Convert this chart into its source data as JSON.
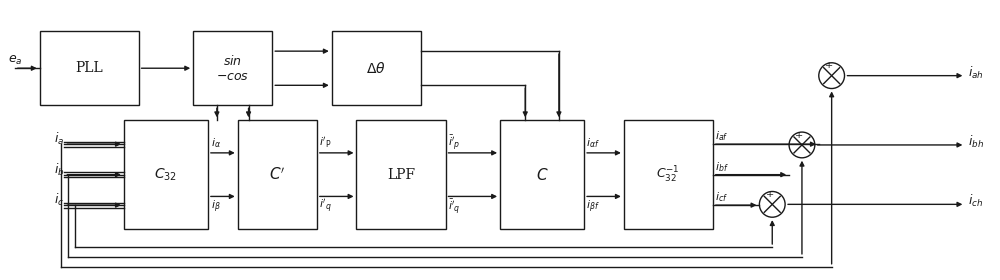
{
  "bg_color": "#ffffff",
  "line_color": "#1a1a1a",
  "box_color": "#ffffff",
  "fig_width": 10.0,
  "fig_height": 2.8,
  "dpi": 100
}
